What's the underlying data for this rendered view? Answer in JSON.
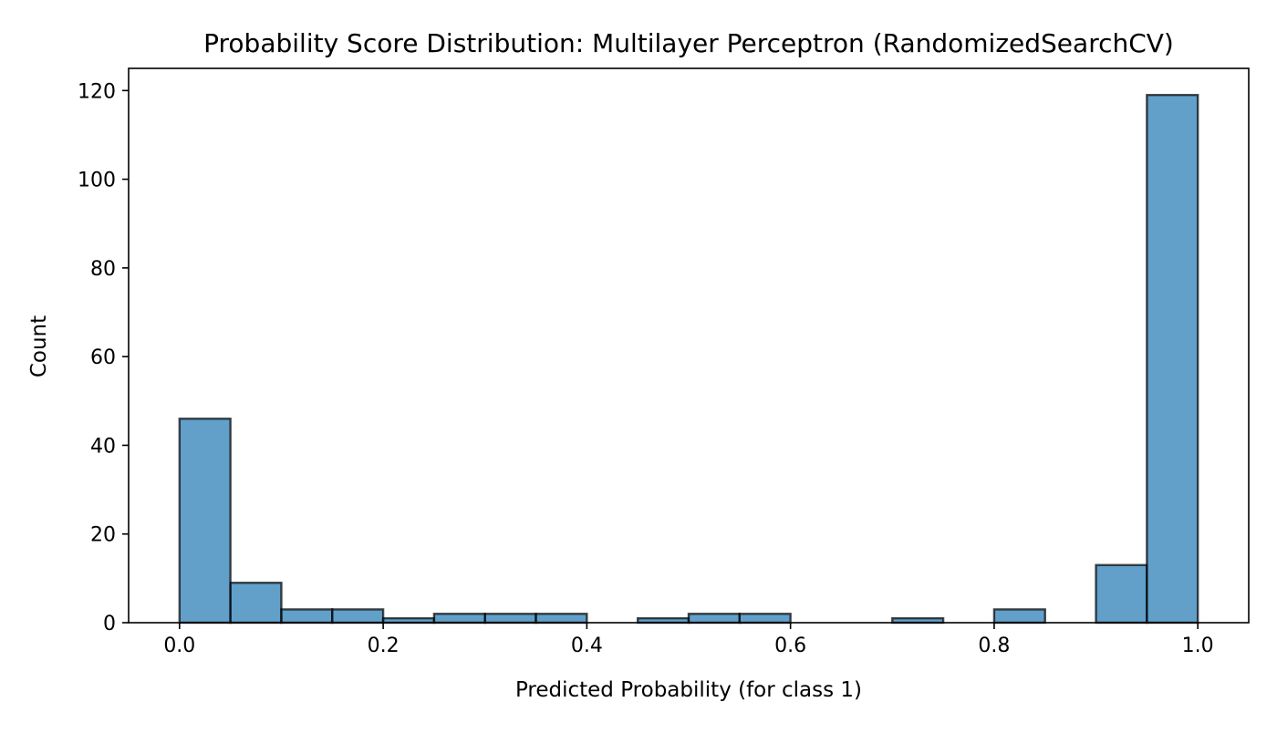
{
  "chart_data": {
    "type": "bar",
    "title": "Probability Score Distribution: Multilayer Perceptron (RandomizedSearchCV)",
    "xlabel": "Predicted Probability (for class 1)",
    "ylabel": "Count",
    "bin_edges": [
      0.0,
      0.05,
      0.1,
      0.15,
      0.2,
      0.25,
      0.3,
      0.35,
      0.4,
      0.45,
      0.5,
      0.55,
      0.6,
      0.65,
      0.7,
      0.75,
      0.8,
      0.85,
      0.9,
      0.95,
      1.0
    ],
    "values": [
      46,
      9,
      3,
      3,
      1,
      2,
      2,
      2,
      0,
      1,
      2,
      2,
      0,
      0,
      1,
      0,
      3,
      0,
      13,
      119
    ],
    "xlim": [
      -0.05,
      1.05
    ],
    "ylim": [
      0,
      125
    ],
    "x_ticks": [
      0.0,
      0.2,
      0.4,
      0.6,
      0.8,
      1.0
    ],
    "x_tick_labels": [
      "0.0",
      "0.2",
      "0.4",
      "0.6",
      "0.8",
      "1.0"
    ],
    "y_ticks": [
      0,
      20,
      40,
      60,
      80,
      100,
      120
    ],
    "y_tick_labels": [
      "0",
      "20",
      "40",
      "60",
      "80",
      "100",
      "120"
    ],
    "bar_color": "#1f77b4",
    "bar_opacity": 0.7,
    "edge_color": "#000000",
    "grid": false,
    "legend": "none"
  }
}
